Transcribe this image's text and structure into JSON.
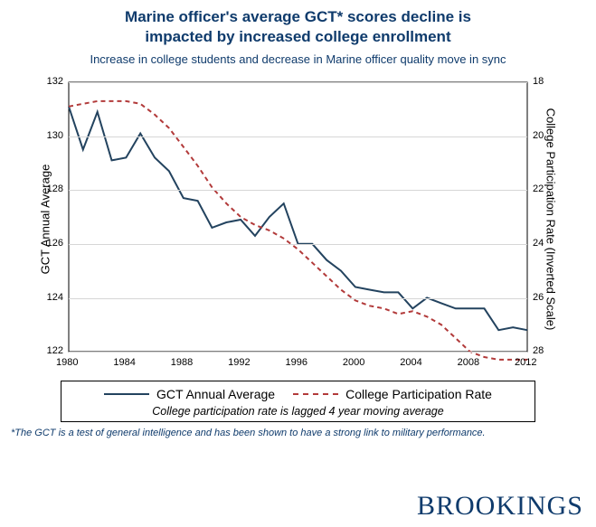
{
  "header": {
    "title_line1": "Marine officer's average GCT* scores decline is",
    "title_line2": "impacted by increased college enrollment",
    "subtitle": "Increase in college students and decrease in Marine officer quality move in sync"
  },
  "chart": {
    "type": "line",
    "background_color": "#ffffff",
    "grid_color": "#d6d6d6",
    "x": {
      "min": 1980,
      "max": 2012,
      "ticks": [
        1980,
        1984,
        1988,
        1992,
        1996,
        2000,
        2004,
        2008,
        2012
      ],
      "fontsize": 11
    },
    "y_left": {
      "label": "GCT Annual Average",
      "min": 122,
      "max": 132,
      "ticks": [
        122,
        124,
        126,
        128,
        130,
        132
      ],
      "fontsize": 11
    },
    "y_right": {
      "label": "College Participation Rate (Inverted Scale)",
      "min": 18,
      "max": 28,
      "inverted": true,
      "ticks": [
        18,
        20,
        22,
        24,
        26,
        28
      ],
      "fontsize": 11
    },
    "series": [
      {
        "name": "GCT Annual Average",
        "axis": "left",
        "color": "#23435f",
        "width": 2,
        "dash": "none",
        "x": [
          1980,
          1981,
          1982,
          1983,
          1984,
          1985,
          1986,
          1987,
          1988,
          1989,
          1990,
          1991,
          1992,
          1993,
          1994,
          1995,
          1996,
          1997,
          1998,
          1999,
          2000,
          2001,
          2002,
          2003,
          2004,
          2005,
          2006,
          2007,
          2008,
          2009,
          2010,
          2011,
          2012
        ],
        "y": [
          131.1,
          129.5,
          130.9,
          129.1,
          129.2,
          130.1,
          129.2,
          128.7,
          127.7,
          127.6,
          126.6,
          126.8,
          126.9,
          126.3,
          127.0,
          127.5,
          126.0,
          126.0,
          125.4,
          125.0,
          124.4,
          124.3,
          124.2,
          124.2,
          123.6,
          124.0,
          123.8,
          123.6,
          123.6,
          123.6,
          122.8,
          122.9,
          122.8
        ]
      },
      {
        "name": "College Participation Rate",
        "axis": "right",
        "color": "#b23a3a",
        "width": 2,
        "dash": "5,4",
        "x": [
          1980,
          1981,
          1982,
          1983,
          1984,
          1985,
          1986,
          1987,
          1988,
          1989,
          1990,
          1991,
          1992,
          1993,
          1994,
          1995,
          1996,
          1997,
          1998,
          1999,
          2000,
          2001,
          2002,
          2003,
          2004,
          2005,
          2006,
          2007,
          2008,
          2009,
          2010,
          2011,
          2012
        ],
        "y": [
          18.9,
          18.8,
          18.7,
          18.7,
          18.7,
          18.8,
          19.2,
          19.7,
          20.4,
          21.1,
          21.9,
          22.5,
          23.0,
          23.3,
          23.5,
          23.8,
          24.2,
          24.7,
          25.2,
          25.7,
          26.1,
          26.3,
          26.4,
          26.6,
          26.5,
          26.7,
          27.0,
          27.5,
          28.0,
          28.2,
          28.3,
          28.3,
          28.3
        ]
      }
    ]
  },
  "legend": {
    "items": [
      {
        "label": "GCT Annual Average",
        "color": "#23435f",
        "dash": "none"
      },
      {
        "label": "College Participation Rate",
        "color": "#b23a3a",
        "dash": "dashed"
      }
    ],
    "note": "College participation rate is lagged 4 year moving average"
  },
  "footnote": "*The GCT is a test of general intelligence and has been shown to have a strong link to military performance.",
  "brand": "BROOKINGS"
}
